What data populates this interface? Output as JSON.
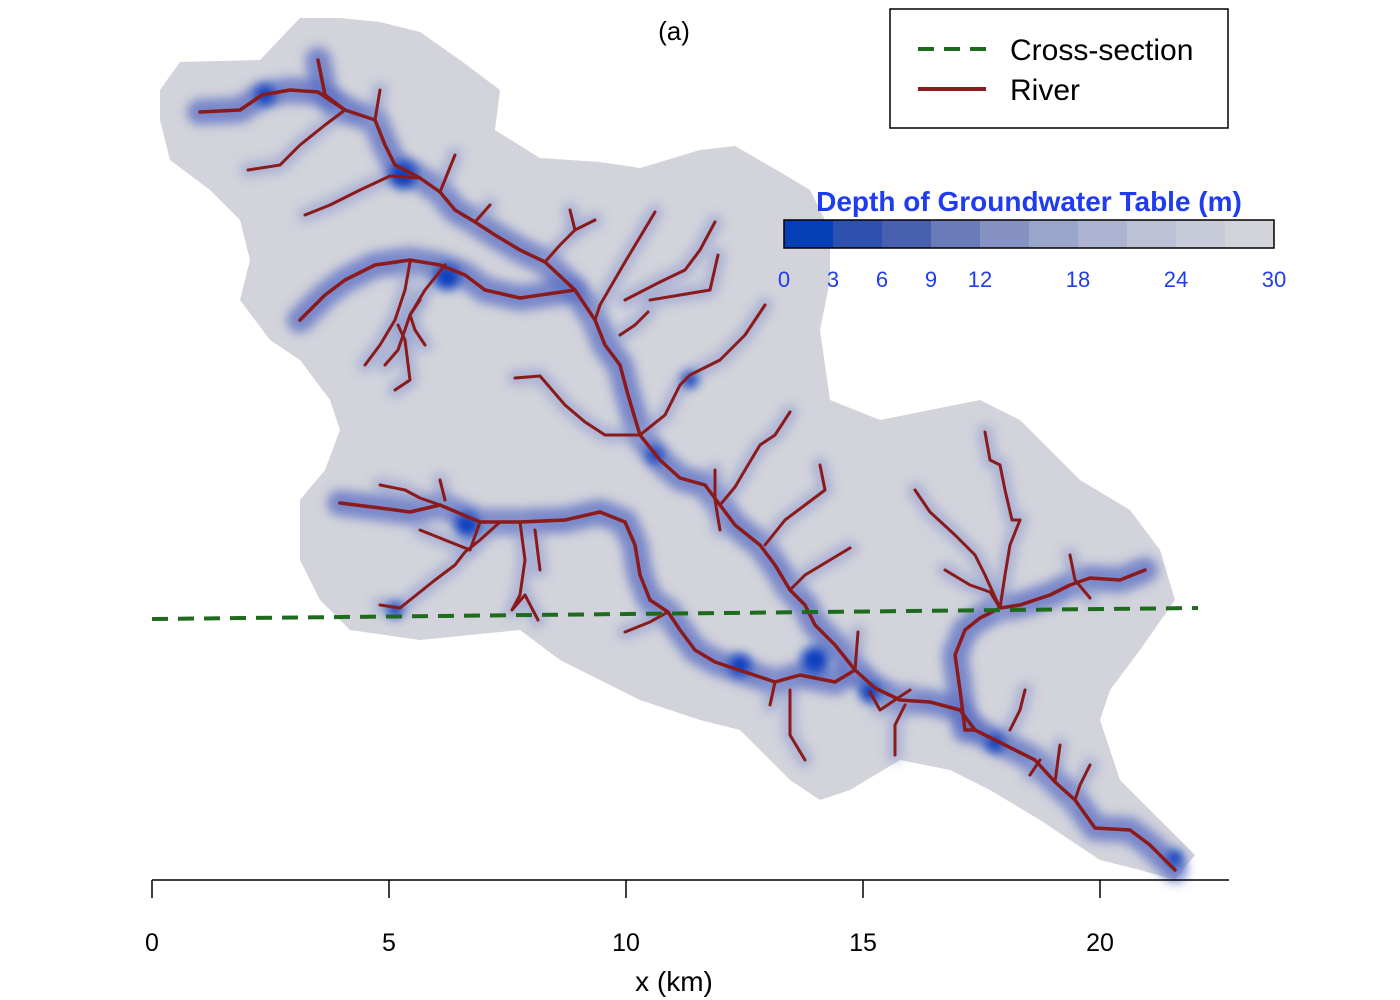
{
  "panel_label": "(a)",
  "colors": {
    "background": "#d2d3db",
    "river": "#8b1a1a",
    "cross_section": "#1e6b1e",
    "colorbar_text": "#1f3cf0",
    "shallow_water": "#0a3fbf"
  },
  "legend": {
    "items": [
      {
        "label": "Cross-section",
        "style": "dashed",
        "color": "#1e6b1e"
      },
      {
        "label": "River",
        "style": "solid",
        "color": "#8b1a1a"
      }
    ]
  },
  "colorbar": {
    "title": "Depth of Groundwater Table (m)",
    "ticks": [
      "0",
      "3",
      "6",
      "9",
      "12",
      "18",
      "24",
      "30"
    ],
    "tick_values": [
      0,
      3,
      6,
      9,
      12,
      18,
      24,
      30
    ],
    "bins": [
      0,
      3,
      6,
      9,
      12,
      15,
      18,
      21,
      24,
      27,
      30
    ],
    "colors": [
      "#053fb8",
      "#2e50ae",
      "#4960b0",
      "#6a7bba",
      "#8592c3",
      "#9aa5cb",
      "#adb4d1",
      "#bcc1d6",
      "#c8cbd9",
      "#d2d3db"
    ]
  },
  "x_axis": {
    "title": "x (km)",
    "ticks": [
      "0",
      "5",
      "10",
      "15",
      "20"
    ],
    "tick_values": [
      0,
      5,
      10,
      15,
      20
    ],
    "range": [
      0,
      22.6
    ]
  }
}
